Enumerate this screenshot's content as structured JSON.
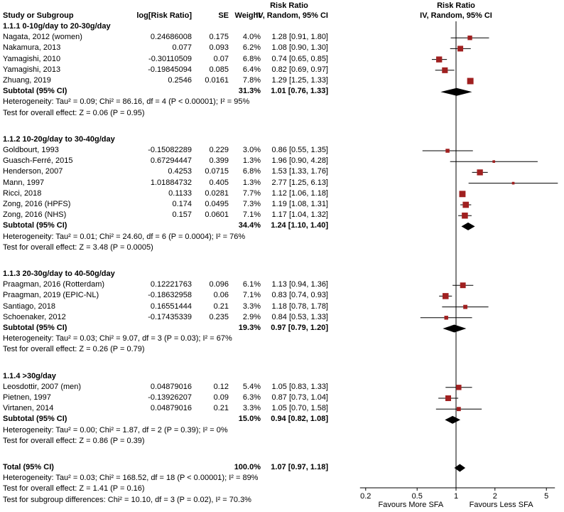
{
  "colors": {
    "marker": "#a02020",
    "diamond": "#000000",
    "line": "#000000",
    "background": "#ffffff"
  },
  "header": {
    "study": "Study or Subgroup",
    "log_rr": "log[Risk Ratio]",
    "se": "SE",
    "weight": "Weight",
    "effect_title": "Risk Ratio",
    "effect_subtitle": "IV, Random, 95% CI",
    "plot_title": "Risk Ratio",
    "plot_subtitle": "IV, Random, 95% CI"
  },
  "axis": {
    "ticks": [
      0.2,
      0.5,
      1,
      2,
      5
    ],
    "tick_labels": [
      "0.2",
      "0.5",
      "1",
      "2",
      "5"
    ],
    "favours_left": "Favours More SFA",
    "favours_right": "Favours Less SFA"
  },
  "chart_data": {
    "type": "forest",
    "scale": "log",
    "xlim": [
      0.2,
      5
    ],
    "effect_measure": "Risk Ratio",
    "model": "IV, Random, 95% CI",
    "subgroups": [
      {
        "title": "1.1.1 0-10g/day to 20-30g/day",
        "studies": [
          {
            "name": "Nagata, 2012 (women)",
            "log_rr": "0.24686008",
            "se": "0.175",
            "weight_text": "4.0%",
            "weight": 4.0,
            "rr": 1.28,
            "lo": 0.91,
            "hi": 1.8,
            "ci_text": "1.28 [0.91, 1.80]"
          },
          {
            "name": "Nakamura, 2013",
            "log_rr": "0.077",
            "se": "0.093",
            "weight_text": "6.2%",
            "weight": 6.2,
            "rr": 1.08,
            "lo": 0.9,
            "hi": 1.3,
            "ci_text": "1.08 [0.90, 1.30]"
          },
          {
            "name": "Yamagishi, 2010",
            "log_rr": "-0.30110509",
            "se": "0.07",
            "weight_text": "6.8%",
            "weight": 6.8,
            "rr": 0.74,
            "lo": 0.65,
            "hi": 0.85,
            "ci_text": "0.74 [0.65, 0.85]"
          },
          {
            "name": "Yamagishi, 2013",
            "log_rr": "-0.19845094",
            "se": "0.085",
            "weight_text": "6.4%",
            "weight": 6.4,
            "rr": 0.82,
            "lo": 0.69,
            "hi": 0.97,
            "ci_text": "0.82 [0.69, 0.97]"
          },
          {
            "name": "Zhuang, 2019",
            "log_rr": "0.2546",
            "se": "0.0161",
            "weight_text": "7.8%",
            "weight": 7.8,
            "rr": 1.29,
            "lo": 1.25,
            "hi": 1.33,
            "ci_text": "1.29 [1.25, 1.33]"
          }
        ],
        "subtotal": {
          "label": "Subtotal (95% CI)",
          "weight_text": "31.3%",
          "rr": 1.01,
          "lo": 0.76,
          "hi": 1.33,
          "ci_text": "1.01 [0.76, 1.33]"
        },
        "heterogeneity": "Heterogeneity: Tau² = 0.09; Chi² = 86.16, df = 4 (P < 0.00001); I² = 95%",
        "overall_effect": "Test for overall effect: Z = 0.06 (P = 0.95)"
      },
      {
        "title": "1.1.2 10-20g/day to 30-40g/day",
        "studies": [
          {
            "name": "Goldbourt, 1993",
            "log_rr": "-0.15082289",
            "se": "0.229",
            "weight_text": "3.0%",
            "weight": 3.0,
            "rr": 0.86,
            "lo": 0.55,
            "hi": 1.35,
            "ci_text": "0.86 [0.55, 1.35]"
          },
          {
            "name": "Guasch-Ferré, 2015",
            "log_rr": "0.67294447",
            "se": "0.399",
            "weight_text": "1.3%",
            "weight": 1.3,
            "rr": 1.96,
            "lo": 0.9,
            "hi": 4.28,
            "ci_text": "1.96 [0.90, 4.28]"
          },
          {
            "name": "Henderson, 2007",
            "log_rr": "0.4253",
            "se": "0.0715",
            "weight_text": "6.8%",
            "weight": 6.8,
            "rr": 1.53,
            "lo": 1.33,
            "hi": 1.76,
            "ci_text": "1.53 [1.33, 1.76]"
          },
          {
            "name": "Mann, 1997",
            "log_rr": "1.01884732",
            "se": "0.405",
            "weight_text": "1.3%",
            "weight": 1.3,
            "rr": 2.77,
            "lo": 1.25,
            "hi": 6.13,
            "ci_text": "2.77 [1.25, 6.13]"
          },
          {
            "name": "Ricci, 2018",
            "log_rr": "0.1133",
            "se": "0.0281",
            "weight_text": "7.7%",
            "weight": 7.7,
            "rr": 1.12,
            "lo": 1.06,
            "hi": 1.18,
            "ci_text": "1.12 [1.06, 1.18]"
          },
          {
            "name": "Zong, 2016 (HPFS)",
            "log_rr": "0.174",
            "se": "0.0495",
            "weight_text": "7.3%",
            "weight": 7.3,
            "rr": 1.19,
            "lo": 1.08,
            "hi": 1.31,
            "ci_text": "1.19 [1.08, 1.31]"
          },
          {
            "name": "Zong, 2016 (NHS)",
            "log_rr": "0.157",
            "se": "0.0601",
            "weight_text": "7.1%",
            "weight": 7.1,
            "rr": 1.17,
            "lo": 1.04,
            "hi": 1.32,
            "ci_text": "1.17 [1.04, 1.32]"
          }
        ],
        "subtotal": {
          "label": "Subtotal (95% CI)",
          "weight_text": "34.4%",
          "rr": 1.24,
          "lo": 1.1,
          "hi": 1.4,
          "ci_text": "1.24 [1.10, 1.40]"
        },
        "heterogeneity": "Heterogeneity: Tau² = 0.01; Chi² = 24.60, df = 6 (P = 0.0004); I² = 76%",
        "overall_effect": "Test for overall effect: Z = 3.48 (P = 0.0005)"
      },
      {
        "title": "1.1.3 20-30g/day to 40-50g/day",
        "studies": [
          {
            "name": "Praagman, 2016 (Rotterdam)",
            "log_rr": "0.12221763",
            "se": "0.096",
            "weight_text": "6.1%",
            "weight": 6.1,
            "rr": 1.13,
            "lo": 0.94,
            "hi": 1.36,
            "ci_text": "1.13 [0.94, 1.36]"
          },
          {
            "name": "Praagman, 2019 (EPIC-NL)",
            "log_rr": "-0.18632958",
            "se": "0.06",
            "weight_text": "7.1%",
            "weight": 7.1,
            "rr": 0.83,
            "lo": 0.74,
            "hi": 0.93,
            "ci_text": "0.83 [0.74, 0.93]"
          },
          {
            "name": "Santiago, 2018",
            "log_rr": "0.16551444",
            "se": "0.21",
            "weight_text": "3.3%",
            "weight": 3.3,
            "rr": 1.18,
            "lo": 0.78,
            "hi": 1.78,
            "ci_text": "1.18 [0.78, 1.78]"
          },
          {
            "name": "Schoenaker, 2012",
            "log_rr": "-0.17435339",
            "se": "0.235",
            "weight_text": "2.9%",
            "weight": 2.9,
            "rr": 0.84,
            "lo": 0.53,
            "hi": 1.33,
            "ci_text": "0.84 [0.53, 1.33]"
          }
        ],
        "subtotal": {
          "label": "Subtotal (95% CI)",
          "weight_text": "19.3%",
          "rr": 0.97,
          "lo": 0.79,
          "hi": 1.2,
          "ci_text": "0.97 [0.79, 1.20]"
        },
        "heterogeneity": "Heterogeneity: Tau² = 0.03; Chi² = 9.07, df = 3 (P = 0.03); I² = 67%",
        "overall_effect": "Test for overall effect: Z = 0.26 (P = 0.79)"
      },
      {
        "title": "1.1.4 >30g/day",
        "studies": [
          {
            "name": "Leosdottir, 2007 (men)",
            "log_rr": "0.04879016",
            "se": "0.12",
            "weight_text": "5.4%",
            "weight": 5.4,
            "rr": 1.05,
            "lo": 0.83,
            "hi": 1.33,
            "ci_text": "1.05 [0.83, 1.33]"
          },
          {
            "name": "Pietnen, 1997",
            "log_rr": "-0.13926207",
            "se": "0.09",
            "weight_text": "6.3%",
            "weight": 6.3,
            "rr": 0.87,
            "lo": 0.73,
            "hi": 1.04,
            "ci_text": "0.87 [0.73, 1.04]"
          },
          {
            "name": "Virtanen, 2014",
            "log_rr": "0.04879016",
            "se": "0.21",
            "weight_text": "3.3%",
            "weight": 3.3,
            "rr": 1.05,
            "lo": 0.7,
            "hi": 1.58,
            "ci_text": "1.05 [0.70, 1.58]"
          }
        ],
        "subtotal": {
          "label": "Subtotal (95% CI)",
          "weight_text": "15.0%",
          "rr": 0.94,
          "lo": 0.82,
          "hi": 1.08,
          "ci_text": "0.94 [0.82, 1.08]"
        },
        "heterogeneity": "Heterogeneity: Tau² = 0.00; Chi² = 1.87, df = 2 (P = 0.39); I² = 0%",
        "overall_effect": "Test for overall effect: Z = 0.86 (P = 0.39)"
      }
    ],
    "total": {
      "label": "Total (95% CI)",
      "weight_text": "100.0%",
      "rr": 1.07,
      "lo": 0.97,
      "hi": 1.18,
      "ci_text": "1.07 [0.97, 1.18]",
      "heterogeneity": "Heterogeneity: Tau² = 0.03; Chi² = 168.52, df = 18 (P < 0.00001); I² = 89%",
      "overall_effect": "Test for overall effect: Z = 1.41 (P = 0.16)",
      "subgroup_differences": "Test for subgroup differences: Chi² = 10.10, df = 3 (P = 0.02), I² = 70.3%"
    }
  }
}
